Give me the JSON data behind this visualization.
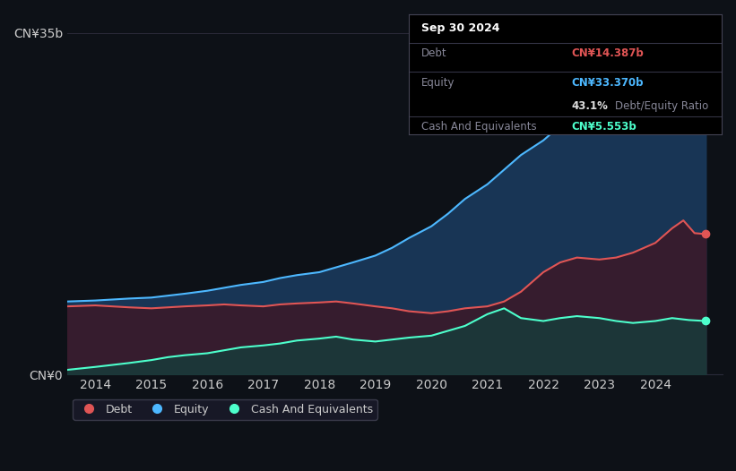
{
  "background_color": "#0d1117",
  "plot_bg_color": "#0d1117",
  "ylabel_top": "CN¥35b",
  "ylabel_bottom": "CN¥0",
  "x_ticks": [
    2014,
    2015,
    2016,
    2017,
    2018,
    2019,
    2020,
    2021,
    2022,
    2023,
    2024
  ],
  "debt_color": "#e05555",
  "equity_color": "#4db8ff",
  "cash_color": "#4dffcc",
  "equity_fill_color": "#1a3a5c",
  "debt_fill_color": "#3a1a2a",
  "cash_fill_color": "#1a3a3a",
  "grid_color": "#2a2a3a",
  "text_color": "#cccccc",
  "legend_bg": "#1a1a2a",
  "ylim": [
    0,
    37
  ],
  "xlim": [
    2013.5,
    2025.2
  ],
  "equity_data": {
    "years": [
      2013.5,
      2014.0,
      2014.3,
      2014.6,
      2015.0,
      2015.3,
      2015.6,
      2016.0,
      2016.3,
      2016.6,
      2017.0,
      2017.3,
      2017.6,
      2018.0,
      2018.3,
      2018.6,
      2019.0,
      2019.3,
      2019.6,
      2020.0,
      2020.3,
      2020.6,
      2021.0,
      2021.3,
      2021.6,
      2022.0,
      2022.3,
      2022.6,
      2023.0,
      2023.3,
      2023.6,
      2024.0,
      2024.3,
      2024.6,
      2024.9
    ],
    "values": [
      7.5,
      7.6,
      7.7,
      7.8,
      7.9,
      8.1,
      8.3,
      8.6,
      8.9,
      9.2,
      9.5,
      9.9,
      10.2,
      10.5,
      11.0,
      11.5,
      12.2,
      13.0,
      14.0,
      15.2,
      16.5,
      18.0,
      19.5,
      21.0,
      22.5,
      24.0,
      25.5,
      27.0,
      28.5,
      29.5,
      30.5,
      31.5,
      32.5,
      33.2,
      33.4
    ]
  },
  "debt_data": {
    "years": [
      2013.5,
      2014.0,
      2014.3,
      2014.6,
      2015.0,
      2015.3,
      2015.6,
      2016.0,
      2016.3,
      2016.6,
      2017.0,
      2017.3,
      2017.6,
      2018.0,
      2018.3,
      2018.6,
      2019.0,
      2019.3,
      2019.6,
      2020.0,
      2020.3,
      2020.6,
      2021.0,
      2021.3,
      2021.6,
      2022.0,
      2022.3,
      2022.6,
      2023.0,
      2023.3,
      2023.6,
      2024.0,
      2024.3,
      2024.5,
      2024.7,
      2024.9
    ],
    "values": [
      7.0,
      7.1,
      7.0,
      6.9,
      6.8,
      6.9,
      7.0,
      7.1,
      7.2,
      7.1,
      7.0,
      7.2,
      7.3,
      7.4,
      7.5,
      7.3,
      7.0,
      6.8,
      6.5,
      6.3,
      6.5,
      6.8,
      7.0,
      7.5,
      8.5,
      10.5,
      11.5,
      12.0,
      11.8,
      12.0,
      12.5,
      13.5,
      15.0,
      15.8,
      14.5,
      14.4
    ]
  },
  "cash_data": {
    "years": [
      2013.5,
      2014.0,
      2014.3,
      2014.6,
      2015.0,
      2015.3,
      2015.6,
      2016.0,
      2016.3,
      2016.6,
      2017.0,
      2017.3,
      2017.6,
      2018.0,
      2018.3,
      2018.6,
      2019.0,
      2019.3,
      2019.6,
      2020.0,
      2020.3,
      2020.6,
      2021.0,
      2021.3,
      2021.6,
      2022.0,
      2022.3,
      2022.6,
      2023.0,
      2023.3,
      2023.6,
      2024.0,
      2024.3,
      2024.6,
      2024.9
    ],
    "values": [
      0.5,
      0.8,
      1.0,
      1.2,
      1.5,
      1.8,
      2.0,
      2.2,
      2.5,
      2.8,
      3.0,
      3.2,
      3.5,
      3.7,
      3.9,
      3.6,
      3.4,
      3.6,
      3.8,
      4.0,
      4.5,
      5.0,
      6.2,
      6.8,
      5.8,
      5.5,
      5.8,
      6.0,
      5.8,
      5.5,
      5.3,
      5.5,
      5.8,
      5.6,
      5.5
    ]
  },
  "tooltip": {
    "date": "Sep 30 2024",
    "debt_label": "Debt",
    "debt_value": "CN¥14.387b",
    "equity_label": "Equity",
    "equity_value": "CN¥33.370b",
    "ratio_value": "43.1%",
    "ratio_label": "Debt/Equity Ratio",
    "cash_label": "Cash And Equivalents",
    "cash_value": "CN¥5.553b"
  },
  "legend_items": [
    {
      "label": "Debt",
      "color": "#e05555"
    },
    {
      "label": "Equity",
      "color": "#4db8ff"
    },
    {
      "label": "Cash And Equivalents",
      "color": "#4dffcc"
    }
  ]
}
